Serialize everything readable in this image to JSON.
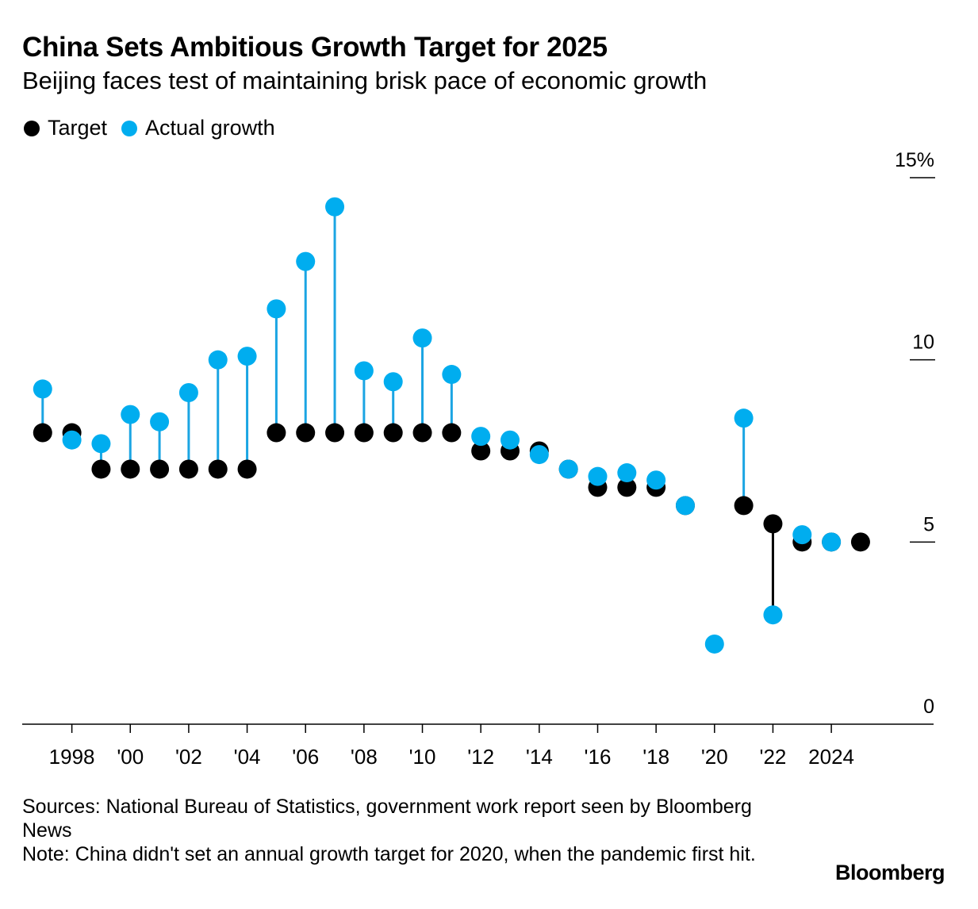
{
  "title": "China Sets Ambitious Growth Target for 2025",
  "subtitle": "Beijing faces test of maintaining brisk pace of economic growth",
  "legend": {
    "target": "Target",
    "actual": "Actual growth"
  },
  "colors": {
    "target": "#000000",
    "actual": "#00adef",
    "actual_stem": "#1ba5e3",
    "axis": "#000000"
  },
  "sources": "Sources: National Bureau of Statistics, government work report seen by Bloomberg News",
  "note": "Note: China didn't set an annual growth target for 2020, when the pandemic first hit.",
  "brand": "Bloomberg",
  "chart_data": {
    "type": "scatter",
    "title": "China Sets Ambitious Growth Target for 2025",
    "subtitle": "Beijing faces test of maintaining brisk pace of economic growth",
    "x": [
      1997,
      1998,
      1999,
      2000,
      2001,
      2002,
      2003,
      2004,
      2005,
      2006,
      2007,
      2008,
      2009,
      2010,
      2011,
      2012,
      2013,
      2014,
      2015,
      2016,
      2017,
      2018,
      2019,
      2020,
      2021,
      2022,
      2023,
      2024,
      2025
    ],
    "series": [
      {
        "name": "Target",
        "values": [
          8,
          8,
          7,
          7,
          7,
          7,
          7,
          7,
          8,
          8,
          8,
          8,
          8,
          8,
          8,
          7.5,
          7.5,
          7.5,
          7,
          6.5,
          6.5,
          6.5,
          6,
          null,
          6,
          5.5,
          5,
          5,
          5
        ]
      },
      {
        "name": "Actual growth",
        "values": [
          9.2,
          7.8,
          7.7,
          8.5,
          8.3,
          9.1,
          10,
          10.1,
          11.4,
          12.7,
          14.2,
          9.7,
          9.4,
          10.6,
          9.6,
          7.9,
          7.8,
          7.4,
          7,
          6.8,
          6.9,
          6.7,
          6,
          2.2,
          8.4,
          3,
          5.2,
          5,
          null
        ]
      }
    ],
    "xticks": [
      {
        "value": 1998,
        "label": "1998"
      },
      {
        "value": 2000,
        "label": "'00"
      },
      {
        "value": 2002,
        "label": "'02"
      },
      {
        "value": 2004,
        "label": "'04"
      },
      {
        "value": 2006,
        "label": "'06"
      },
      {
        "value": 2008,
        "label": "'08"
      },
      {
        "value": 2010,
        "label": "'10"
      },
      {
        "value": 2012,
        "label": "'12"
      },
      {
        "value": 2014,
        "label": "'14"
      },
      {
        "value": 2016,
        "label": "'16"
      },
      {
        "value": 2018,
        "label": "'18"
      },
      {
        "value": 2020,
        "label": "'20"
      },
      {
        "value": 2022,
        "label": "'22"
      },
      {
        "value": 2024,
        "label": "2024"
      }
    ],
    "yticks": [
      {
        "value": 0,
        "label": "0"
      },
      {
        "value": 5,
        "label": "5"
      },
      {
        "value": 10,
        "label": "10"
      },
      {
        "value": 15,
        "label": "15%"
      }
    ],
    "ylim": [
      0,
      15
    ],
    "xlim": [
      1996.3,
      2027.5
    ],
    "ylabel": "",
    "xlabel": "",
    "grid": false,
    "legend_position": "top-left"
  }
}
